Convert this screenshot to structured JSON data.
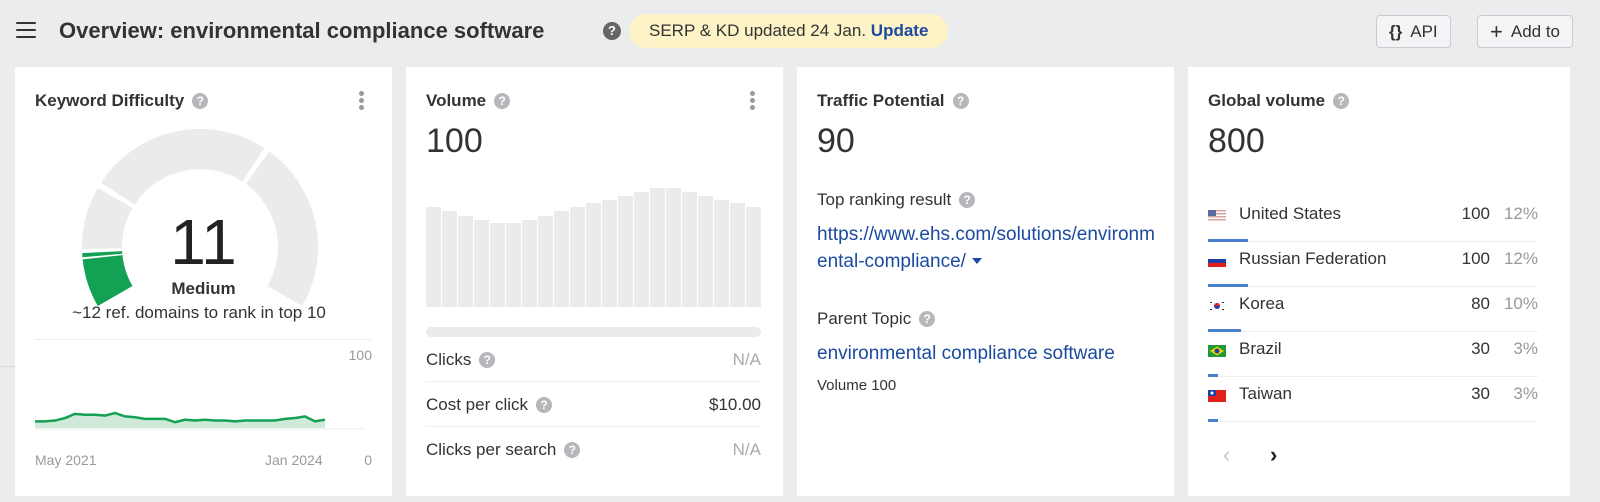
{
  "header": {
    "title": "Overview: environmental compliance software",
    "serp_notice": "SERP & KD updated 24 Jan.",
    "update_link": "Update",
    "api_button": "API",
    "api_icon": "{}",
    "add_button": "Add to",
    "add_icon": "+"
  },
  "keyword_difficulty": {
    "title": "Keyword Difficulty",
    "value": "11",
    "label": "Medium",
    "subtext": "~12 ref. domains to rank in top 10",
    "chart": {
      "y_max_label": "100",
      "y_min_label": "0",
      "x_start_label": "May 2021",
      "x_end_label": "Jan 2024"
    },
    "colors": {
      "fill": "#13a154",
      "track": "#ebebec"
    }
  },
  "volume": {
    "title": "Volume",
    "value": "100",
    "metrics": [
      {
        "label": "Clicks",
        "value": "N/A"
      },
      {
        "label": "Cost per click",
        "value": "$10.00"
      },
      {
        "label": "Clicks per search",
        "value": "N/A"
      }
    ]
  },
  "traffic_potential": {
    "title": "Traffic Potential",
    "value": "90",
    "top_ranking_label": "Top ranking result",
    "top_ranking_url": "https://www.ehs.com/solutions/environmental-compliance/",
    "parent_topic_label": "Parent Topic",
    "parent_topic": "environmental compliance software",
    "parent_volume": "Volume 100"
  },
  "global_volume": {
    "title": "Global volume",
    "value": "800",
    "countries": [
      {
        "name": "United States",
        "volume": "100",
        "pct": "12%",
        "flag": "us-flag"
      },
      {
        "name": "Russian Federation",
        "volume": "100",
        "pct": "12%",
        "flag": "ru-flag"
      },
      {
        "name": "Korea",
        "volume": "80",
        "pct": "10%",
        "flag": "kr-flag"
      },
      {
        "name": "Brazil",
        "volume": "30",
        "pct": "3%",
        "flag": "br-flag"
      },
      {
        "name": "Taiwan",
        "volume": "30",
        "pct": "3%",
        "flag": "tw-flag"
      }
    ],
    "prev_icon": "‹",
    "next_icon": "›"
  },
  "chart_data": [
    {
      "type": "area",
      "title": "Keyword Difficulty history",
      "x_labels": [
        "May 2021",
        "Jan 2024"
      ],
      "ylim": [
        0,
        100
      ],
      "values": [
        8,
        8,
        9,
        12,
        17,
        16,
        16,
        15,
        18,
        14,
        13,
        11,
        11,
        11,
        7,
        10,
        9,
        10,
        9,
        9,
        8,
        9,
        9,
        9,
        9,
        11,
        12,
        14,
        8,
        10
      ]
    },
    {
      "type": "bar",
      "title": "Volume history",
      "values": [
        80,
        77,
        73,
        70,
        67,
        67,
        70,
        73,
        77,
        80,
        83,
        86,
        89,
        92,
        95,
        95,
        92,
        89,
        86,
        83,
        80
      ]
    }
  ]
}
